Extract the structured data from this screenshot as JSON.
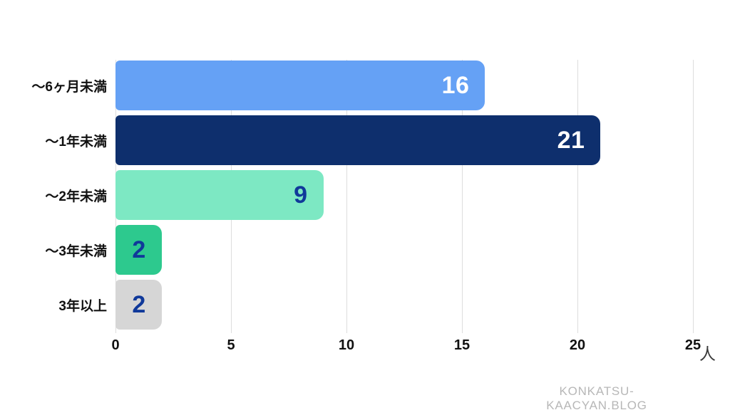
{
  "chart_data": {
    "type": "bar",
    "orientation": "horizontal",
    "title": "",
    "xlabel": "",
    "ylabel": "",
    "x_unit": "人",
    "categories": [
      "～6ヶ月未満",
      "～1年未満",
      "～2年未満",
      "～3年未満",
      "3年以上"
    ],
    "values": [
      16,
      21,
      9,
      2,
      2
    ],
    "bar_colors": [
      "#65a1f5",
      "#0e2f6d",
      "#7de8c3",
      "#2dc98e",
      "#d6d6d6"
    ],
    "value_label_colors": [
      "#ffffff",
      "#ffffff",
      "#10399a",
      "#10399a",
      "#10399a"
    ],
    "xlim": [
      0,
      25
    ],
    "x_ticks": [
      "0",
      "5",
      "10",
      "15",
      "20",
      "25"
    ],
    "grid": true,
    "legend": false
  },
  "footer": {
    "watermark": "KONKATSU-KAACYAN.BLOG"
  },
  "colors": {
    "background": "#ffffff",
    "gridline": "#dddddd",
    "tick_label": "#111111",
    "category_label": "#111111",
    "unit_label": "#3a3a3a",
    "watermark": "#b7b7b7"
  }
}
